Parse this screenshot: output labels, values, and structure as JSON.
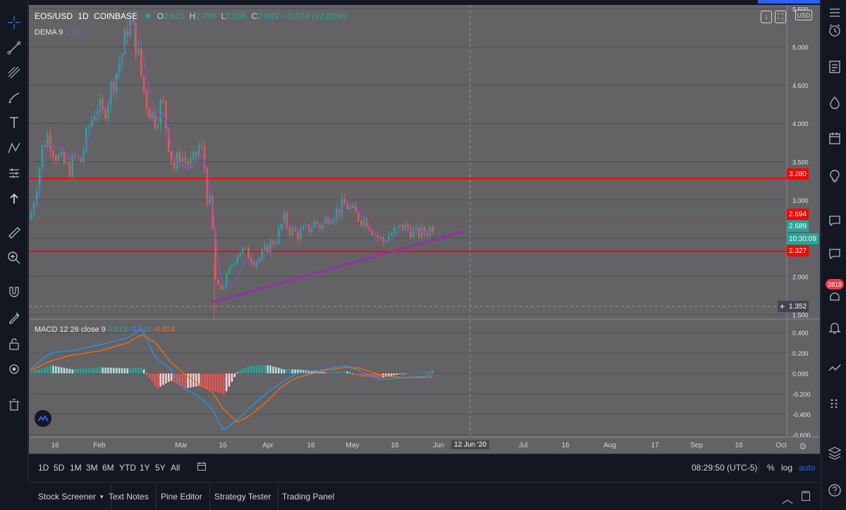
{
  "legend": {
    "symbol": "EOS/USD",
    "interval": "1D",
    "exchange": "COINBASE",
    "o_label": "O",
    "o_value": "2.615",
    "h_label": "H",
    "h_value": "2.709",
    "l_label": "L",
    "l_value": "2.596",
    "c_label": "C",
    "c_value": "2.689",
    "change": "+0.074 (+2.83%)"
  },
  "dema_legend": {
    "name": "DEMA",
    "length": "9",
    "value": "2.666"
  },
  "macd_legend": {
    "name": "MACD",
    "params": "12 26 close 9",
    "hist": "0.013",
    "macd": "-0.011",
    "signal": "-0.024"
  },
  "price_axis": {
    "currency": "USD",
    "ticks": [
      "5.500",
      "5.000",
      "4.500",
      "4.000",
      "3.500",
      "3.000",
      "2.500",
      "2.000",
      "1.500"
    ],
    "tags": {
      "upper_line": "3.280",
      "mid_line": "2.694",
      "last_price": "2.689",
      "countdown": "10:30:09",
      "lower_line": "2.327",
      "crosshair": "1.352"
    }
  },
  "macd_axis": {
    "ticks": [
      "0.400",
      "0.200",
      "0.000",
      "-0.200",
      "-0.400",
      "-0.600"
    ]
  },
  "time_axis": {
    "labels": [
      "16",
      "Feb",
      "Mar",
      "16",
      "Apr",
      "16",
      "May",
      "16",
      "Jun",
      "12 Jun '20",
      "Jul",
      "16",
      "Aug",
      "17",
      "Sep",
      "16",
      "Oct"
    ],
    "crosshair_label": "12 Jun '20"
  },
  "range_bar": {
    "ranges": [
      "1D",
      "5D",
      "1M",
      "3M",
      "6M",
      "YTD",
      "1Y",
      "5Y",
      "All"
    ],
    "clock": "08:29:50 (UTC-5)",
    "percent": "%",
    "log": "log",
    "auto": "auto"
  },
  "bottom_tabs": [
    "Stock Screener",
    "Text Notes",
    "Pine Editor",
    "Strategy Tester",
    "Trading Panel"
  ],
  "notifications": {
    "count": "2818"
  },
  "chart_data": {
    "type": "candlestick",
    "symbol": "EOS/USD",
    "interval": "1D",
    "x_labels": [
      "16",
      "Feb",
      "Mar",
      "16",
      "Apr",
      "16",
      "May",
      "16",
      "Jun"
    ],
    "ylim": [
      1.45,
      5.55
    ],
    "horizontal_lines": [
      3.28,
      2.694,
      2.327
    ],
    "trendline": {
      "from": [
        1.66,
        1.66
      ],
      "to": [
        2.59,
        2.59
      ]
    },
    "last_close": 2.689,
    "macd_ylim": [
      -0.6,
      0.45
    ],
    "colors": {
      "up": "#26a69a",
      "down": "#ef5350",
      "hlines": "#ff0000",
      "trendline": "#9c27b0",
      "dema": "#7e57c2",
      "macd": "#2196f3",
      "signal": "#ff6d00"
    }
  }
}
